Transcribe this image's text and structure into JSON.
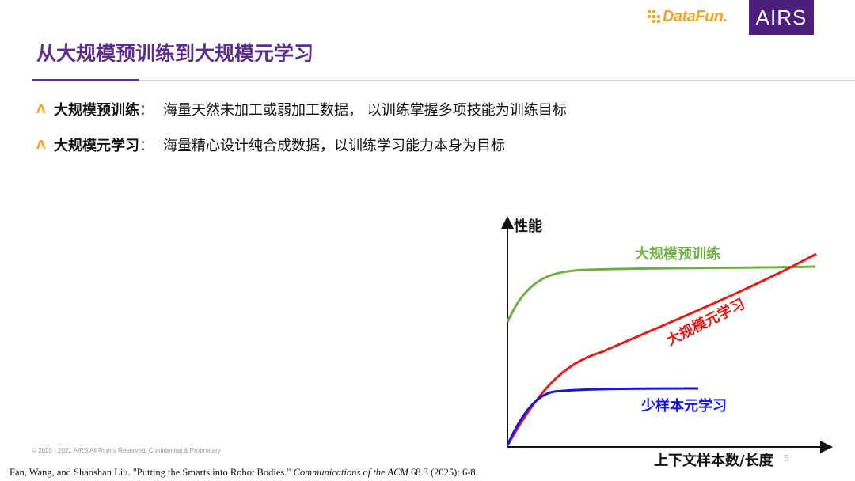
{
  "header": {
    "datafun_logo": "DataFun.",
    "airs_logo": "AIRS"
  },
  "slide": {
    "title": "从大规模预训练到大规模元学习",
    "bullets": [
      {
        "label": "大规模预训练",
        "colon": "：",
        "text": "海量天然未加工或弱加工数据， 以训练掌握多项技能为训练目标"
      },
      {
        "label": "大规模元学习",
        "colon": "：",
        "text": "海量精心设计纯合成数据，以训练学习能力本身为目标"
      }
    ]
  },
  "diagram": {
    "y_axis_label": "性能",
    "x_axis_label": "上下文样本数/长度",
    "curves": [
      {
        "name": "大规模预训练",
        "color": "#70ad47"
      },
      {
        "name": "大规模元学习",
        "color": "#e41b17"
      },
      {
        "name": "少样本元学习",
        "color": "#1515e6"
      }
    ]
  },
  "footer": {
    "copyright": "© 2020 - 2021 AIRS All Rights Reserved. Confidential & Proprietary",
    "page_number": "5",
    "citation_authors": "Fan, Wang, and Shaoshan Liu. \"Putting the Smarts into Robot Bodies.\" ",
    "citation_journal": "Communications of the ACM",
    "citation_details": " 68.3 (2025): 6-8."
  }
}
